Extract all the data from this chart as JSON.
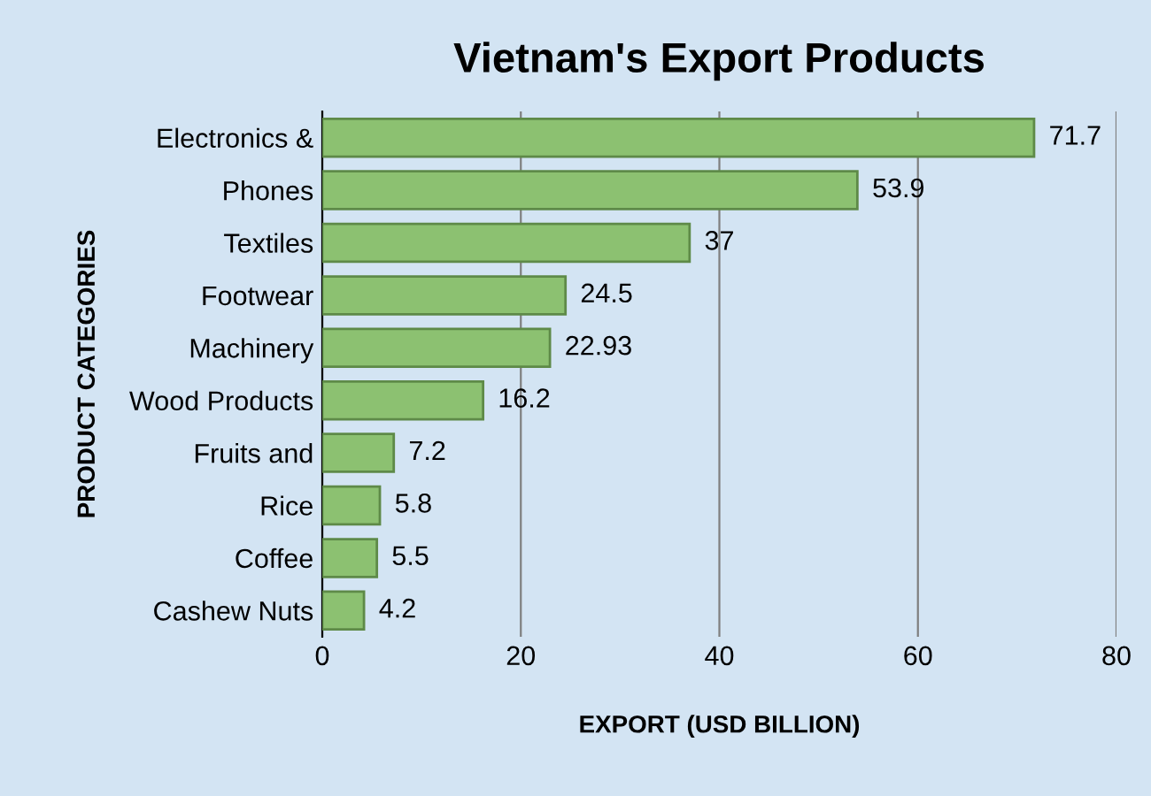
{
  "chart_data": {
    "type": "bar",
    "orientation": "horizontal",
    "title": "Vietnam's Export Products",
    "xlabel": "EXPORT (USD BILLION)",
    "ylabel": "PRODUCT CATEGORIES",
    "categories": [
      "Electronics &",
      "Phones",
      "Textiles",
      "Footwear",
      "Machinery",
      "Wood Products",
      "Fruits and",
      "Rice",
      "Coffee",
      "Cashew Nuts"
    ],
    "values": [
      71.7,
      53.9,
      37,
      24.5,
      22.93,
      16.2,
      7.2,
      5.8,
      5.5,
      4.2
    ],
    "color": "#8cc171",
    "xlim": [
      0,
      80
    ],
    "xticks": [
      0,
      20,
      40,
      60,
      80
    ],
    "grid": "x",
    "data_labels": true,
    "legend": false
  }
}
